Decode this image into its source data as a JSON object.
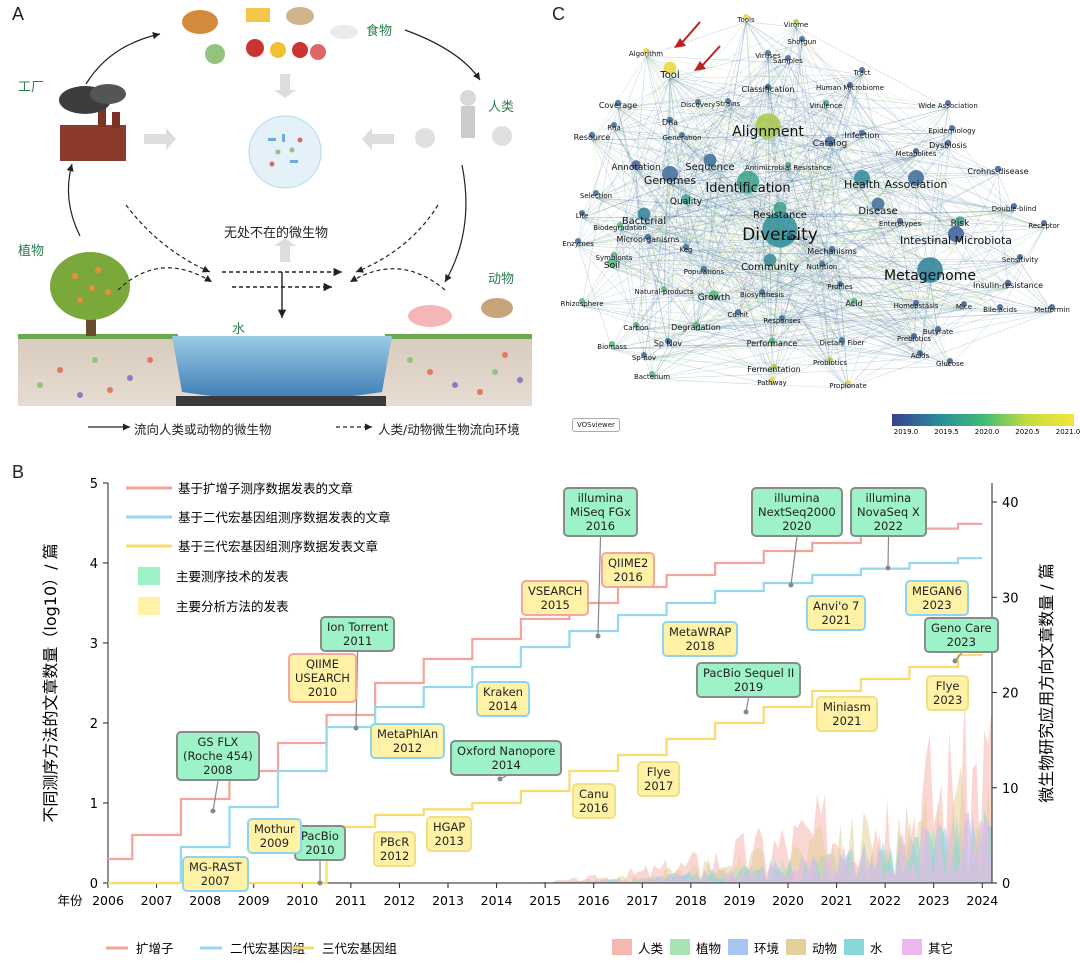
{
  "panels": {
    "a": "A",
    "b": "B",
    "c": "C"
  },
  "panelA": {
    "food": "食物",
    "factory": "工厂",
    "human": "人类",
    "plant": "植物",
    "animal": "动物",
    "water": "水",
    "center": "无处不在的微生物",
    "legend_solid": "流向人类或动物的微生物",
    "legend_dashed": "人类/动物微生物流向环境"
  },
  "panelC": {
    "credit": "VOSviewer",
    "colorbar": {
      "ticks": [
        "2019.0",
        "2019.5",
        "2020.0",
        "2020.5",
        "2021.0"
      ],
      "colors": [
        "#3b3f8f",
        "#2a8a9a",
        "#3fbb78",
        "#c6dd3d",
        "#f5e43a"
      ]
    },
    "keywords": [
      {
        "t": "Diversity",
        "c": "#2e8d96",
        "s": 17
      },
      {
        "t": "Alignment",
        "c": "#a8c84a",
        "s": 14
      },
      {
        "t": "Metagenome",
        "c": "#2a7f97",
        "s": 14
      },
      {
        "t": "Identification",
        "c": "#3aa08a",
        "s": 13
      },
      {
        "t": "Health",
        "c": "#2f8a95",
        "s": 11
      },
      {
        "t": "Association",
        "c": "#3c6b98",
        "s": 11
      },
      {
        "t": "Intestinal Microbiota",
        "c": "#3b5a9a",
        "s": 11
      },
      {
        "t": "Genomes",
        "c": "#3b6b98",
        "s": 11
      },
      {
        "t": "Sequence",
        "c": "#3b6b98",
        "s": 10
      },
      {
        "t": "Community",
        "c": "#3b8a96",
        "s": 10
      },
      {
        "t": "Bacterial",
        "c": "#2f7f98",
        "s": 10
      },
      {
        "t": "Resistance",
        "c": "#3aa08a",
        "s": 10
      },
      {
        "t": "Disease",
        "c": "#3b6b98",
        "s": 10
      },
      {
        "t": "Catalog",
        "c": "#3b6b98",
        "s": 9
      },
      {
        "t": "Tool",
        "c": "#e8d83a",
        "s": 10
      },
      {
        "t": "Annotation",
        "c": "#4a5e98",
        "s": 9
      },
      {
        "t": "Quality",
        "c": "#3aa08a",
        "s": 9
      },
      {
        "t": "Growth",
        "c": "#4fb87a",
        "s": 9
      },
      {
        "t": "Soil",
        "c": "#4fb87a",
        "s": 9
      },
      {
        "t": "Risk",
        "c": "#3aa08a",
        "s": 9
      },
      {
        "t": "Mechanisms",
        "c": "#3b6b98",
        "s": 8
      },
      {
        "t": "Degradation",
        "c": "#4fb87a",
        "s": 8
      },
      {
        "t": "Performance",
        "c": "#4fb87a",
        "s": 8
      },
      {
        "t": "Sp Nov",
        "c": "#3b6b98",
        "s": 8
      },
      {
        "t": "Fermentation",
        "c": "#a8c84a",
        "s": 8
      },
      {
        "t": "Microorganisms",
        "c": "#3b6b98",
        "s": 8
      },
      {
        "t": "Infection",
        "c": "#3b6b98",
        "s": 8
      },
      {
        "t": "Dysbiosis",
        "c": "#3b5a9a",
        "s": 8
      },
      {
        "t": "Classification",
        "c": "#3b6b98",
        "s": 8
      },
      {
        "t": "Coverage",
        "c": "#3b6b98",
        "s": 8
      },
      {
        "t": "Resource",
        "c": "#3b6b98",
        "s": 8
      },
      {
        "t": "Insulin-resistance",
        "c": "#3b5a9a",
        "s": 8
      },
      {
        "t": "Crohns-disease",
        "c": "#3b5a9a",
        "s": 8
      },
      {
        "t": "Dna",
        "c": "#3b6b98",
        "s": 8
      },
      {
        "t": "Acid",
        "c": "#4fb87a",
        "s": 8
      },
      {
        "t": "Antimicrobial Resistance",
        "c": "#3aa08a",
        "s": 7
      },
      {
        "t": "Algorithm",
        "c": "#e8d83a",
        "s": 7
      },
      {
        "t": "Tools",
        "c": "#e8d83a",
        "s": 7
      },
      {
        "t": "Virome",
        "c": "#a8c84a",
        "s": 7
      },
      {
        "t": "Shotgun",
        "c": "#3b6b98",
        "s": 7
      },
      {
        "t": "Viruses",
        "c": "#3b6b98",
        "s": 7
      },
      {
        "t": "Samples",
        "c": "#3b6b98",
        "s": 7
      },
      {
        "t": "Tract",
        "c": "#3b5a9a",
        "s": 7
      },
      {
        "t": "Human Microbiome",
        "c": "#3b5a9a",
        "s": 7
      },
      {
        "t": "Virulence",
        "c": "#3aa08a",
        "s": 7
      },
      {
        "t": "Wide Association",
        "c": "#3b5a9a",
        "s": 7
      },
      {
        "t": "Epidemiology",
        "c": "#3b5a9a",
        "s": 7
      },
      {
        "t": "Metabolites",
        "c": "#3b5a9a",
        "s": 7
      },
      {
        "t": "Rna",
        "c": "#3b6b98",
        "s": 7
      },
      {
        "t": "Generation",
        "c": "#3b6b98",
        "s": 7
      },
      {
        "t": "Strains",
        "c": "#3b6b98",
        "s": 7
      },
      {
        "t": "Discovery",
        "c": "#3b6b98",
        "s": 7
      },
      {
        "t": "Selection",
        "c": "#3b6b98",
        "s": 7
      },
      {
        "t": "Life",
        "c": "#3b6b98",
        "s": 7
      },
      {
        "t": "Enzymes",
        "c": "#3b6b98",
        "s": 7
      },
      {
        "t": "Biodegradation",
        "c": "#4fb87a",
        "s": 7
      },
      {
        "t": "Symbionts",
        "c": "#4fb87a",
        "s": 7
      },
      {
        "t": "Keg",
        "c": "#3b6b98",
        "s": 7
      },
      {
        "t": "Populations",
        "c": "#3b6b98",
        "s": 7
      },
      {
        "t": "Cells",
        "c": "#3b6b98",
        "s": 7
      },
      {
        "t": "Enterotypes",
        "c": "#3b5a9a",
        "s": 7
      },
      {
        "t": "Double-blind",
        "c": "#3b5a9a",
        "s": 7
      },
      {
        "t": "Receptor",
        "c": "#3b5a9a",
        "s": 7
      },
      {
        "t": "Sensitivity",
        "c": "#3b5a9a",
        "s": 7
      },
      {
        "t": "Nutrition",
        "c": "#3b6b98",
        "s": 7
      },
      {
        "t": "Profiles",
        "c": "#3b6b98",
        "s": 7
      },
      {
        "t": "Natural-products",
        "c": "#4fb87a",
        "s": 7
      },
      {
        "t": "Rhizosphere",
        "c": "#4fb87a",
        "s": 7
      },
      {
        "t": "Biosynthesis",
        "c": "#3b6b98",
        "s": 7
      },
      {
        "t": "Dietary Fiber",
        "c": "#3b6b98",
        "s": 7
      },
      {
        "t": "Homeostasis",
        "c": "#3b5a9a",
        "s": 7
      },
      {
        "t": "Mice",
        "c": "#3b5a9a",
        "s": 7
      },
      {
        "t": "Bile-acids",
        "c": "#3b5a9a",
        "s": 7
      },
      {
        "t": "Metformin",
        "c": "#3b5a9a",
        "s": 7
      },
      {
        "t": "Carbon",
        "c": "#4fb87a",
        "s": 7
      },
      {
        "t": "Cd-hit",
        "c": "#3b6b98",
        "s": 7
      },
      {
        "t": "Responses",
        "c": "#3b6b98",
        "s": 7
      },
      {
        "t": "Prebiotics",
        "c": "#3b5a9a",
        "s": 7
      },
      {
        "t": "Butyrate",
        "c": "#3b5a9a",
        "s": 7
      },
      {
        "t": "Biomass",
        "c": "#4fb87a",
        "s": 7
      },
      {
        "t": "Sp-nov",
        "c": "#3b6b98",
        "s": 7
      },
      {
        "t": "Probiotics",
        "c": "#a8c84a",
        "s": 7
      },
      {
        "t": "Acids",
        "c": "#3b5a9a",
        "s": 7
      },
      {
        "t": "Glucose",
        "c": "#3b5a9a",
        "s": 7
      },
      {
        "t": "Bacterium",
        "c": "#4fb87a",
        "s": 7
      },
      {
        "t": "Pathway",
        "c": "#e8d83a",
        "s": 7
      },
      {
        "t": "Propionate",
        "c": "#e8d83a",
        "s": 7
      }
    ]
  },
  "panelB": {
    "left_ylabel": "不同测序方法的文章数量（log10）/ 篇",
    "right_ylabel": "微生物研究应用方向文章数量 / 篇",
    "x_prefix": "年份",
    "legend_top": [
      "基于扩增子测序数据发表的文章",
      "基于二代宏基因组测序数据发表的文章",
      "基于三代宏基因组测序数据发表文章",
      "主要测序技术的发表",
      "主要分析方法的发表"
    ],
    "legend_bottom_left": [
      "扩增子",
      "二代宏基因组",
      "三代宏基因组"
    ],
    "legend_bottom_right": [
      "人类",
      "植物",
      "环境",
      "动物",
      "水",
      "其它"
    ],
    "events_seq": [
      {
        "text": "GS FLX\n(Roche 454)\n2008"
      },
      {
        "text": "PacBio\n2010"
      },
      {
        "text": "Ion Torrent\n2011"
      },
      {
        "text": "Oxford Nanopore\n2014"
      },
      {
        "text": "illumina\nMiSeq FGx\n2016"
      },
      {
        "text": "PacBio Sequel II\n2019"
      },
      {
        "text": "illumina\nNextSeq2000\n2020"
      },
      {
        "text": "illumina\nNovaSeq X\n2022"
      },
      {
        "text": "Geno Care\n2023"
      }
    ],
    "events_ana": [
      {
        "text": "MG-RAST\n2007"
      },
      {
        "text": "Mothur\n2009"
      },
      {
        "text": "QIIME\nUSEARCH\n2010"
      },
      {
        "text": "MetaPhlAn\n2012"
      },
      {
        "text": "PBcR\n2012"
      },
      {
        "text": "HGAP\n2013"
      },
      {
        "text": "Kraken\n2014"
      },
      {
        "text": "VSEARCH\n2015"
      },
      {
        "text": "QIIME2\n2016"
      },
      {
        "text": "Canu\n2016"
      },
      {
        "text": "Flye\n2017"
      },
      {
        "text": "MetaWRAP\n2018"
      },
      {
        "text": "Anvi'o 7\n2021"
      },
      {
        "text": "Miniasm\n2021"
      },
      {
        "text": "MEGAN6\n2023"
      },
      {
        "text": "Flye\n2023"
      }
    ]
  },
  "chart_data": {
    "type": "line",
    "x": [
      2006,
      2007,
      2008,
      2009,
      2010,
      2011,
      2012,
      2013,
      2014,
      2015,
      2016,
      2017,
      2018,
      2019,
      2020,
      2021,
      2022,
      2023,
      2024
    ],
    "xlim": [
      2006,
      2024.2
    ],
    "ylim": [
      0,
      5
    ],
    "y2lim": [
      0,
      42
    ],
    "yticks": [
      0,
      1,
      2,
      3,
      4,
      5
    ],
    "y2ticks": [
      0,
      10,
      20,
      30,
      40
    ],
    "series": [
      {
        "name": "扩增子",
        "color": "#f4a49a",
        "values": [
          0.3,
          0.6,
          1.05,
          1.4,
          1.75,
          2.1,
          2.5,
          2.8,
          3.05,
          3.3,
          3.5,
          3.7,
          3.85,
          4.0,
          4.15,
          4.25,
          4.35,
          4.43,
          4.49
        ]
      },
      {
        "name": "二代宏基因组",
        "color": "#93d8ef",
        "values": [
          0,
          0,
          0.45,
          0.95,
          1.4,
          1.95,
          2.2,
          2.45,
          2.7,
          2.95,
          3.15,
          3.35,
          3.5,
          3.65,
          3.75,
          3.85,
          3.93,
          4.0,
          4.06
        ]
      },
      {
        "name": "三代宏基因组",
        "color": "#f8dc6e",
        "values": [
          0,
          0,
          0,
          0,
          0,
          0.7,
          0.85,
          0.92,
          1.0,
          1.15,
          1.4,
          1.6,
          1.8,
          2.0,
          2.2,
          2.4,
          2.55,
          2.7,
          2.85
        ]
      }
    ]
  }
}
